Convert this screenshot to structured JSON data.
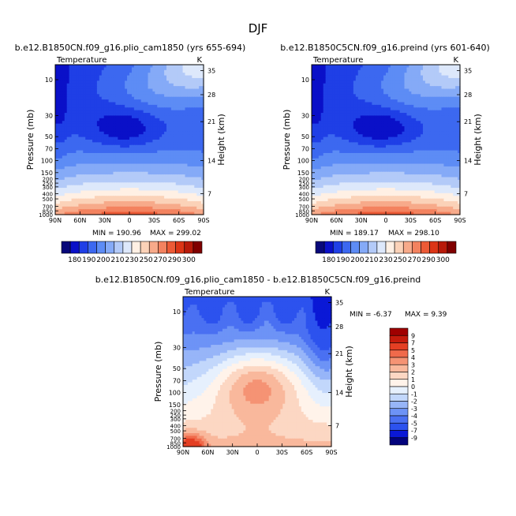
{
  "figure_title": "DJF",
  "colors": {
    "temp_palette": [
      "#08087a",
      "#0a10c8",
      "#1f3fe6",
      "#3c68f0",
      "#5d8cf5",
      "#85aaf7",
      "#b3caf8",
      "#dde8fb",
      "#fff0e4",
      "#fbd2b8",
      "#f7aa8a",
      "#f3825f",
      "#ec5a36",
      "#dc3516",
      "#b81a0a",
      "#800000"
    ],
    "diff_palette": [
      "#03037c",
      "#0a18d6",
      "#2c52ee",
      "#4a70f2",
      "#6d93f6",
      "#97b5f8",
      "#c2d7fb",
      "#e6f0fd",
      "#fff3ea",
      "#fcd7c3",
      "#f9b89c",
      "#f59374",
      "#f06a4b",
      "#e43f23",
      "#c51b0c",
      "#a00000"
    ]
  },
  "chart_data": [
    {
      "id": "left",
      "type": "heatmap",
      "title": "b.e12.B1850CN.f09_g16.plio_cam1850 (yrs 655-694)",
      "variable": "Temperature",
      "units": "K",
      "ylabel": "Pressure (mb)",
      "y2label": "Height (km)",
      "x_ticks": [
        "90N",
        "60N",
        "30N",
        "0",
        "30S",
        "60S",
        "90S"
      ],
      "y_ticks": [
        "10",
        "30",
        "50",
        "70",
        "100",
        "150",
        "200",
        "250",
        "300",
        "400",
        "500",
        "700",
        "850",
        "1000"
      ],
      "y2_ticks": [
        "35",
        "28",
        "21",
        "14",
        "7"
      ],
      "min_label": "MIN = 190.96",
      "max_label": "MAX = 299.02",
      "min": 190.96,
      "max": 299.02,
      "colorbar_labels": [
        "180",
        "190",
        "200",
        "210",
        "230",
        "250",
        "270",
        "290",
        "300"
      ],
      "colorbar_ticks": [
        "180",
        "190",
        "200",
        "210",
        "230",
        "250",
        "270",
        "290",
        "300"
      ]
    },
    {
      "id": "right",
      "type": "heatmap",
      "title": "b.e12.B1850C5CN.f09_g16.preind (yrs 601-640)",
      "variable": "Temperature",
      "units": "K",
      "ylabel": "Pressure (mb)",
      "y2label": "Height (km)",
      "x_ticks": [
        "90N",
        "60N",
        "30N",
        "0",
        "30S",
        "60S",
        "90S"
      ],
      "y_ticks": [
        "10",
        "30",
        "50",
        "70",
        "100",
        "150",
        "200",
        "250",
        "300",
        "400",
        "500",
        "700",
        "850",
        "1000"
      ],
      "y2_ticks": [
        "35",
        "28",
        "21",
        "14",
        "7"
      ],
      "min_label": "MIN = 189.17",
      "max_label": "MAX = 298.10",
      "min": 189.17,
      "max": 298.1,
      "colorbar_labels": [
        "180",
        "190",
        "200",
        "210",
        "230",
        "250",
        "270",
        "290",
        "300"
      ],
      "colorbar_ticks": [
        "180",
        "190",
        "200",
        "210",
        "230",
        "250",
        "270",
        "290",
        "300"
      ]
    },
    {
      "id": "diff",
      "type": "heatmap",
      "title": "b.e12.B1850CN.f09_g16.plio_cam1850 - b.e12.B1850C5CN.f09_g16.preind",
      "variable": "Temperature",
      "units": "K",
      "ylabel": "Pressure (mb)",
      "y2label": "Height (km)",
      "x_ticks": [
        "90N",
        "60N",
        "30N",
        "0",
        "30S",
        "60S",
        "90S"
      ],
      "y_ticks": [
        "10",
        "30",
        "50",
        "70",
        "100",
        "150",
        "200",
        "250",
        "300",
        "400",
        "500",
        "700",
        "850",
        "1000"
      ],
      "y2_ticks": [
        "35",
        "28",
        "21",
        "14",
        "7"
      ],
      "min_label": "MIN = -6.37",
      "max_label": "MAX = 9.39",
      "min": -6.37,
      "max": 9.39,
      "colorbar_labels": [
        "9",
        "7",
        "5",
        "4",
        "3",
        "2",
        "1",
        "0",
        "-1",
        "-2",
        "-3",
        "-4",
        "-5",
        "-7",
        "-9"
      ]
    }
  ]
}
